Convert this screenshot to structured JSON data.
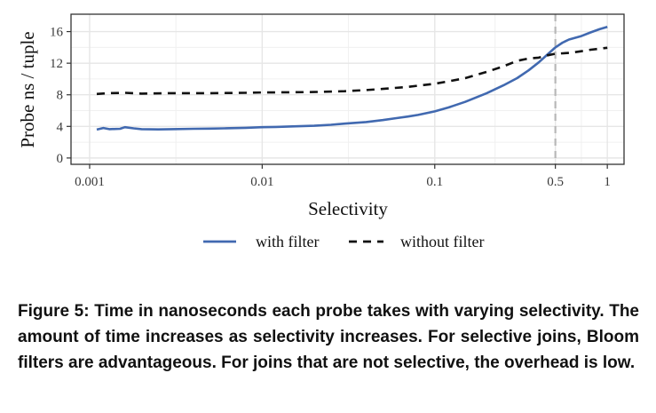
{
  "chart_data": {
    "type": "line",
    "xlabel": "Selectivity",
    "ylabel": "Probe ns / tuple",
    "x_scale": "log",
    "xlim": [
      0.00078,
      1.25
    ],
    "ylim": [
      -0.8,
      18.2
    ],
    "x_ticks": [
      {
        "value": 0.001,
        "label": "0.001"
      },
      {
        "value": 0.01,
        "label": "0.01"
      },
      {
        "value": 0.1,
        "label": "0.1"
      },
      {
        "value": 0.5,
        "label": "0.5"
      },
      {
        "value": 1,
        "label": "1"
      }
    ],
    "y_ticks": [
      {
        "value": 0,
        "label": "0"
      },
      {
        "value": 4,
        "label": "4"
      },
      {
        "value": 8,
        "label": "8"
      },
      {
        "value": 12,
        "label": "12"
      },
      {
        "value": 16,
        "label": "16"
      }
    ],
    "grid": true,
    "legend_position": "bottom",
    "reference_line_x": 0.5,
    "series": [
      {
        "name": "with filter",
        "color": "#4169b0",
        "style": "solid",
        "points": [
          [
            0.0011,
            3.6
          ],
          [
            0.0012,
            3.8
          ],
          [
            0.0013,
            3.65
          ],
          [
            0.0015,
            3.7
          ],
          [
            0.0016,
            3.9
          ],
          [
            0.0018,
            3.75
          ],
          [
            0.002,
            3.65
          ],
          [
            0.0025,
            3.62
          ],
          [
            0.003,
            3.65
          ],
          [
            0.004,
            3.7
          ],
          [
            0.005,
            3.72
          ],
          [
            0.006,
            3.75
          ],
          [
            0.008,
            3.82
          ],
          [
            0.01,
            3.9
          ],
          [
            0.012,
            3.93
          ],
          [
            0.015,
            4.0
          ],
          [
            0.02,
            4.08
          ],
          [
            0.025,
            4.2
          ],
          [
            0.03,
            4.35
          ],
          [
            0.04,
            4.55
          ],
          [
            0.05,
            4.8
          ],
          [
            0.06,
            5.05
          ],
          [
            0.07,
            5.25
          ],
          [
            0.08,
            5.45
          ],
          [
            0.1,
            5.9
          ],
          [
            0.12,
            6.4
          ],
          [
            0.15,
            7.1
          ],
          [
            0.2,
            8.2
          ],
          [
            0.25,
            9.2
          ],
          [
            0.3,
            10.1
          ],
          [
            0.35,
            11.1
          ],
          [
            0.4,
            12.1
          ],
          [
            0.45,
            13.1
          ],
          [
            0.5,
            14.0
          ],
          [
            0.55,
            14.6
          ],
          [
            0.6,
            15.0
          ],
          [
            0.7,
            15.4
          ],
          [
            0.8,
            15.9
          ],
          [
            0.9,
            16.3
          ],
          [
            1.0,
            16.6
          ]
        ]
      },
      {
        "name": "without filter",
        "color": "#111111",
        "style": "dashed",
        "points": [
          [
            0.0011,
            8.1
          ],
          [
            0.0013,
            8.2
          ],
          [
            0.0016,
            8.25
          ],
          [
            0.002,
            8.15
          ],
          [
            0.003,
            8.2
          ],
          [
            0.005,
            8.2
          ],
          [
            0.008,
            8.25
          ],
          [
            0.01,
            8.3
          ],
          [
            0.015,
            8.32
          ],
          [
            0.02,
            8.35
          ],
          [
            0.03,
            8.45
          ],
          [
            0.04,
            8.6
          ],
          [
            0.05,
            8.75
          ],
          [
            0.07,
            9.0
          ],
          [
            0.1,
            9.4
          ],
          [
            0.12,
            9.7
          ],
          [
            0.15,
            10.1
          ],
          [
            0.2,
            10.9
          ],
          [
            0.25,
            11.6
          ],
          [
            0.3,
            12.3
          ],
          [
            0.35,
            12.6
          ],
          [
            0.4,
            12.7
          ],
          [
            0.45,
            13.0
          ],
          [
            0.5,
            13.2
          ],
          [
            0.6,
            13.3
          ],
          [
            0.7,
            13.5
          ],
          [
            0.8,
            13.7
          ],
          [
            1.0,
            13.95
          ]
        ]
      }
    ]
  },
  "caption": "Figure 5: Time in nanoseconds each probe takes with varying selectivity. The amount of time increases as selectivity increases. For selective joins, Bloom filters are advantageous. For joins that are not selective, the overhead is low."
}
